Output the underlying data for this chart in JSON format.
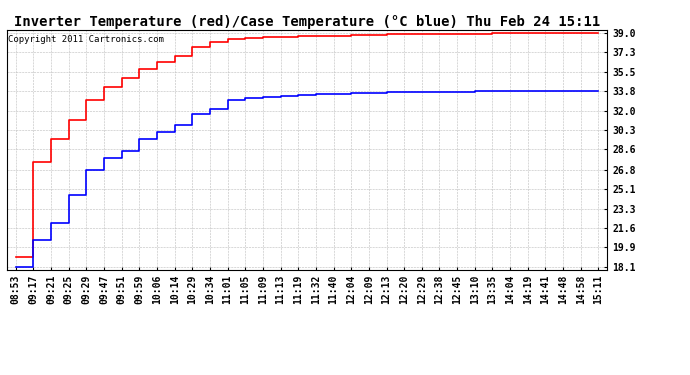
{
  "title": "Inverter Temperature (red)/Case Temperature (°C blue) Thu Feb 24 15:11",
  "copyright": "Copyright 2011 Cartronics.com",
  "background_color": "#ffffff",
  "plot_bg_color": "#ffffff",
  "grid_color": "#bbbbbb",
  "yticks": [
    18.1,
    19.9,
    21.6,
    23.3,
    25.1,
    26.8,
    28.6,
    30.3,
    32.0,
    33.8,
    35.5,
    37.3,
    39.0
  ],
  "xtick_labels": [
    "08:53",
    "09:17",
    "09:21",
    "09:25",
    "09:29",
    "09:47",
    "09:51",
    "09:59",
    "10:06",
    "10:14",
    "10:29",
    "10:34",
    "11:01",
    "11:05",
    "11:09",
    "11:13",
    "11:19",
    "11:32",
    "11:40",
    "12:04",
    "12:09",
    "12:13",
    "12:20",
    "12:29",
    "12:38",
    "12:45",
    "13:10",
    "13:35",
    "14:04",
    "14:19",
    "14:41",
    "14:48",
    "14:58",
    "15:11"
  ],
  "red_values": [
    19.0,
    27.5,
    29.5,
    31.2,
    33.0,
    34.2,
    35.0,
    35.8,
    36.4,
    37.0,
    37.8,
    38.2,
    38.5,
    38.6,
    38.65,
    38.7,
    38.72,
    38.75,
    38.8,
    38.85,
    38.88,
    38.9,
    38.92,
    38.94,
    38.96,
    38.97,
    38.98,
    38.99,
    39.0,
    39.0,
    39.0,
    39.0,
    39.0,
    39.0
  ],
  "blue_values": [
    18.1,
    20.5,
    22.0,
    24.5,
    26.8,
    27.8,
    28.5,
    29.5,
    30.2,
    30.8,
    31.8,
    32.2,
    33.0,
    33.2,
    33.3,
    33.4,
    33.5,
    33.55,
    33.6,
    33.65,
    33.7,
    33.72,
    33.74,
    33.76,
    33.77,
    33.78,
    33.8,
    33.8,
    33.8,
    33.8,
    33.8,
    33.8,
    33.8,
    33.8
  ],
  "red_color": "#ff0000",
  "blue_color": "#0000ff",
  "ylim_min": 17.8,
  "ylim_max": 39.3,
  "title_fontsize": 10,
  "tick_fontsize": 7,
  "copyright_fontsize": 6.5,
  "linewidth": 1.2
}
